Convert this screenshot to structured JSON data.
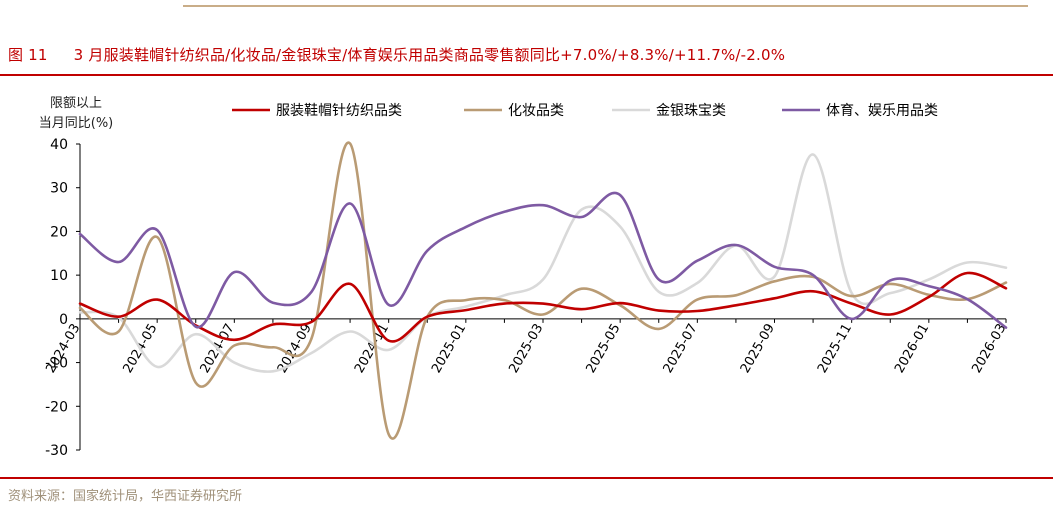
{
  "figure": {
    "number": "图 11",
    "title": "3 月服装鞋帽针纺织品/化妆品/金银珠宝/体育娱乐用品类商品零售额同比+7.0%/+8.3%/+11.7%/-2.0%"
  },
  "source": "资料来源：国家统计局，华西证券研究所",
  "chart_data": {
    "type": "line",
    "ylabel_lines": [
      "限额以上",
      "当月同比(%)"
    ],
    "xlabel": "",
    "ylim": [
      -30,
      40
    ],
    "yticks": [
      -30,
      -20,
      -10,
      0,
      10,
      20,
      30,
      40
    ],
    "x": [
      "2024-03",
      "2024-04",
      "2024-05",
      "2024-06",
      "2024-07",
      "2024-08",
      "2024-09",
      "2024-10",
      "2024-11",
      "2024-12",
      "2025-01",
      "2025-02",
      "2025-03",
      "2025-04",
      "2025-05",
      "2025-06",
      "2025-07",
      "2025-08",
      "2025-09",
      "2025-10",
      "2025-11",
      "2025-12",
      "2026-01",
      "2026-02",
      "2026-03"
    ],
    "xtick_labels": [
      "2024-03",
      "2024-05",
      "2024-07",
      "2024-09",
      "2024-11",
      "2025-01",
      "2025-03",
      "2025-05",
      "2025-07",
      "2025-09",
      "2025-11",
      "2026-01",
      "2026-03"
    ],
    "grid": false,
    "legend_position": "top",
    "series": [
      {
        "name": "服装鞋帽针纺织品类",
        "color": "#c00000",
        "values": [
          3.5,
          0.5,
          4.4,
          -1.5,
          -4.8,
          -1.3,
          -0.7,
          8.0,
          -5.0,
          0.5,
          2.0,
          3.5,
          3.5,
          2.2,
          3.6,
          1.9,
          1.8,
          3.1,
          4.7,
          6.3,
          3.5,
          1.0,
          5.0,
          10.5,
          7.0
        ]
      },
      {
        "name": "化妆品类",
        "color": "#b99b74",
        "values": [
          2.5,
          -2.9,
          18.7,
          -14.6,
          -6.1,
          -6.5,
          -4.5,
          40.1,
          -26.4,
          0.5,
          4.3,
          4.3,
          1.0,
          6.9,
          3.1,
          -2.3,
          4.4,
          5.4,
          8.6,
          9.6,
          5.2,
          8.0,
          5.5,
          4.5,
          8.3
        ]
      },
      {
        "name": "金银珠宝类",
        "color": "#d9d9d9",
        "values": [
          1.5,
          0.3,
          -11.0,
          -3.5,
          -10.0,
          -12.0,
          -7.8,
          -2.9,
          -7.1,
          0.5,
          2.8,
          5.4,
          9.0,
          25.0,
          21.1,
          6.2,
          8.2,
          16.8,
          9.7,
          37.6,
          5.9,
          5.9,
          9.0,
          12.9,
          11.7
        ]
      },
      {
        "name": "体育、娱乐用品类",
        "color": "#7e5aa3",
        "values": [
          19.4,
          13.0,
          20.3,
          -1.8,
          10.7,
          3.7,
          6.2,
          26.4,
          3.2,
          15.6,
          21.0,
          24.5,
          26.0,
          23.3,
          28.3,
          9.0,
          13.3,
          16.9,
          11.9,
          10.0,
          0.0,
          8.8,
          7.5,
          4.5,
          -2.0
        ]
      }
    ]
  }
}
